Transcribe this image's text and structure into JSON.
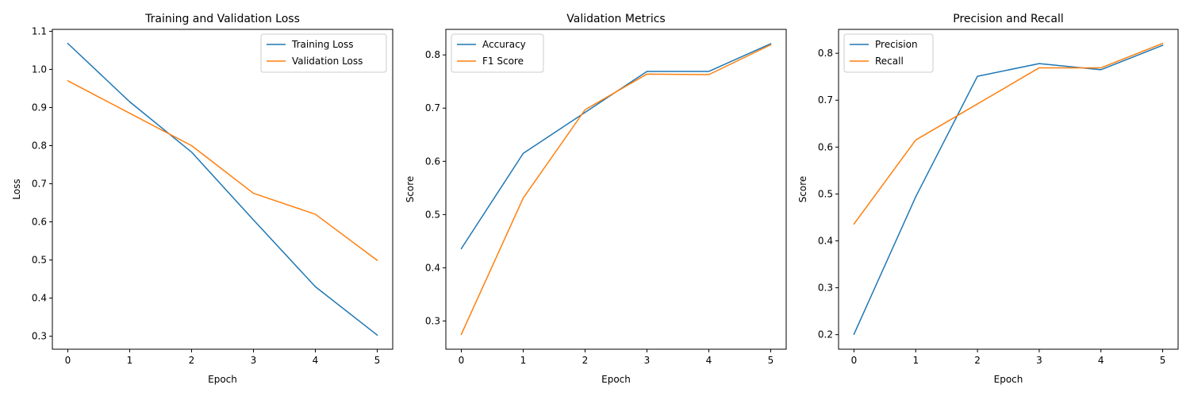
{
  "chart_data": [
    {
      "type": "line",
      "title": "Training and Validation Loss",
      "xlabel": "Epoch",
      "ylabel": "Loss",
      "x": [
        0,
        1,
        2,
        3,
        4,
        5
      ],
      "xlim": [
        -0.25,
        5.25
      ],
      "ylim": [
        0.266,
        1.105
      ],
      "xticks": [
        "0",
        "1",
        "2",
        "3",
        "4",
        "5"
      ],
      "yticks": [
        "0.3",
        "0.4",
        "0.5",
        "0.6",
        "0.7",
        "0.8",
        "0.9",
        "1.0",
        "1.1"
      ],
      "legend": "upper right",
      "grid": false,
      "series": [
        {
          "name": "Training Loss",
          "color": "#1f77b4",
          "values": [
            1.068,
            0.915,
            0.783,
            0.605,
            0.43,
            0.303
          ]
        },
        {
          "name": "Validation Loss",
          "color": "#ff7f0e",
          "values": [
            0.97,
            0.885,
            0.8,
            0.675,
            0.62,
            0.499
          ]
        }
      ]
    },
    {
      "type": "line",
      "title": "Validation Metrics",
      "xlabel": "Epoch",
      "ylabel": "Score",
      "x": [
        0,
        1,
        2,
        3,
        4,
        5
      ],
      "xlim": [
        -0.25,
        5.25
      ],
      "ylim": [
        0.247,
        0.848
      ],
      "xticks": [
        "0",
        "1",
        "2",
        "3",
        "4",
        "5"
      ],
      "yticks": [
        "0.3",
        "0.4",
        "0.5",
        "0.6",
        "0.7",
        "0.8"
      ],
      "legend": "upper left",
      "grid": false,
      "series": [
        {
          "name": "Accuracy",
          "color": "#1f77b4",
          "values": [
            0.436,
            0.615,
            0.692,
            0.769,
            0.769,
            0.821
          ]
        },
        {
          "name": "F1 Score",
          "color": "#ff7f0e",
          "values": [
            0.275,
            0.531,
            0.697,
            0.764,
            0.763,
            0.819
          ]
        }
      ]
    },
    {
      "type": "line",
      "title": "Precision and Recall",
      "xlabel": "Epoch",
      "ylabel": "Score",
      "x": [
        0,
        1,
        2,
        3,
        4,
        5
      ],
      "xlim": [
        -0.25,
        5.25
      ],
      "ylim": [
        0.169,
        0.851
      ],
      "xticks": [
        "0",
        "1",
        "2",
        "3",
        "4",
        "5"
      ],
      "yticks": [
        "0.2",
        "0.3",
        "0.4",
        "0.5",
        "0.6",
        "0.7",
        "0.8"
      ],
      "legend": "upper left",
      "grid": false,
      "series": [
        {
          "name": "Precision",
          "color": "#1f77b4",
          "values": [
            0.201,
            0.494,
            0.751,
            0.778,
            0.765,
            0.817
          ]
        },
        {
          "name": "Recall",
          "color": "#ff7f0e",
          "values": [
            0.436,
            0.615,
            0.692,
            0.769,
            0.769,
            0.821
          ]
        }
      ]
    }
  ]
}
